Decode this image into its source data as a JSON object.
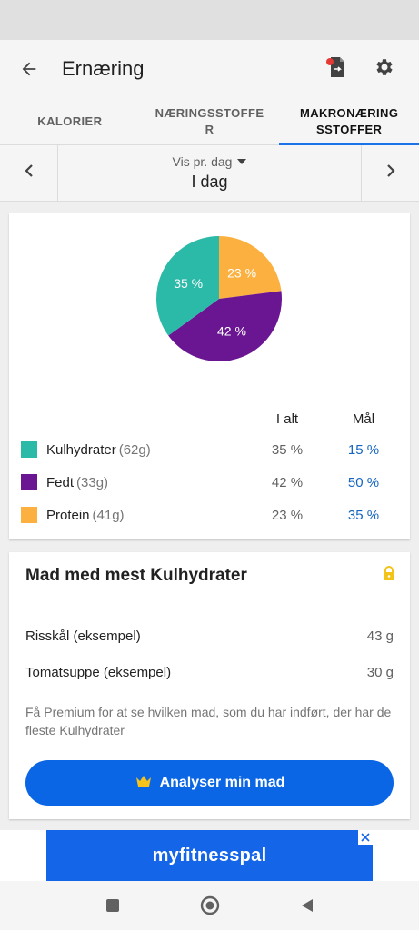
{
  "app_bar": {
    "title": "Ernæring",
    "icons": [
      "back-arrow-icon",
      "export-file-icon",
      "gear-icon"
    ]
  },
  "tabs": [
    {
      "label": "KALORIER",
      "active": false
    },
    {
      "label": "NÆRINGSSTOFFER",
      "active": false
    },
    {
      "label": "MAKRONÆRINGSSTOFFER",
      "active": true
    }
  ],
  "date_nav": {
    "view_label": "Vis pr. dag",
    "day_label": "I dag"
  },
  "chart_data": {
    "type": "pie",
    "slices": [
      {
        "label": "Kulhydrater",
        "value": 35,
        "display": "35 %",
        "color": "#2bb9a8"
      },
      {
        "label": "Fedt",
        "value": 42,
        "display": "42 %",
        "color": "#6a1592"
      },
      {
        "label": "Protein",
        "value": 23,
        "display": "23 %",
        "color": "#fbb03f"
      }
    ]
  },
  "macros": {
    "header_total": "I alt",
    "header_goal": "Mål",
    "rows": [
      {
        "name": "Kulhydrater",
        "grams": "(62g)",
        "total": "35 %",
        "goal": "15 %",
        "color": "#2bb9a8"
      },
      {
        "name": "Fedt",
        "grams": "(33g)",
        "total": "42 %",
        "goal": "50 %",
        "color": "#6a1592"
      },
      {
        "name": "Protein",
        "grams": "(41g)",
        "total": "23 %",
        "goal": "35 %",
        "color": "#fbb03f"
      }
    ]
  },
  "food_card": {
    "title": "Mad med mest Kulhydrater",
    "items": [
      {
        "name": "Risskål (eksempel)",
        "amount": "43 g"
      },
      {
        "name": "Tomatsuppe (eksempel)",
        "amount": "30 g"
      }
    ],
    "premium_text": "Få Premium for at se hvilken mad, som du har indført, der har de fleste Kulhydrater",
    "button_label": "Analyser min mad"
  },
  "ad": {
    "brand": "myfitnesspal"
  },
  "nav": {
    "icons": [
      "recents-square-icon",
      "home-circle-icon",
      "back-triangle-icon"
    ]
  },
  "colors": {
    "accent": "#1a73e8",
    "button": "#0a66e4",
    "carbs": "#2bb9a8",
    "fat": "#6a1592",
    "protein": "#fbb03f"
  }
}
